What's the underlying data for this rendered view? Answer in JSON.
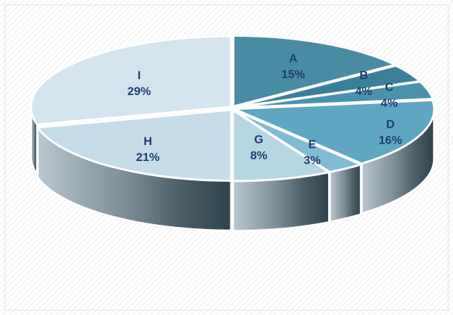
{
  "chart_data": {
    "type": "pie",
    "style": "3d-exploded",
    "title": "",
    "legend": "none",
    "slices": [
      {
        "label": "A",
        "value": 15,
        "display": "15%",
        "color": "#4a8ba4"
      },
      {
        "label": "B",
        "value": 4,
        "display": "4%",
        "color": "#3a7f99"
      },
      {
        "label": "C",
        "value": 4,
        "display": "4%",
        "color": "#4a91ad"
      },
      {
        "label": "D",
        "value": 16,
        "display": "16%",
        "color": "#5fa6c2"
      },
      {
        "label": "E",
        "value": 3,
        "display": "3%",
        "color": "#7dbcd3"
      },
      {
        "label": "G",
        "value": 8,
        "display": "8%",
        "color": "#b5d6e3"
      },
      {
        "label": "H",
        "value": 21,
        "display": "21%",
        "color": "#c6dde9"
      },
      {
        "label": "I",
        "value": 29,
        "display": "29%",
        "color": "#d4e4ee"
      }
    ]
  }
}
